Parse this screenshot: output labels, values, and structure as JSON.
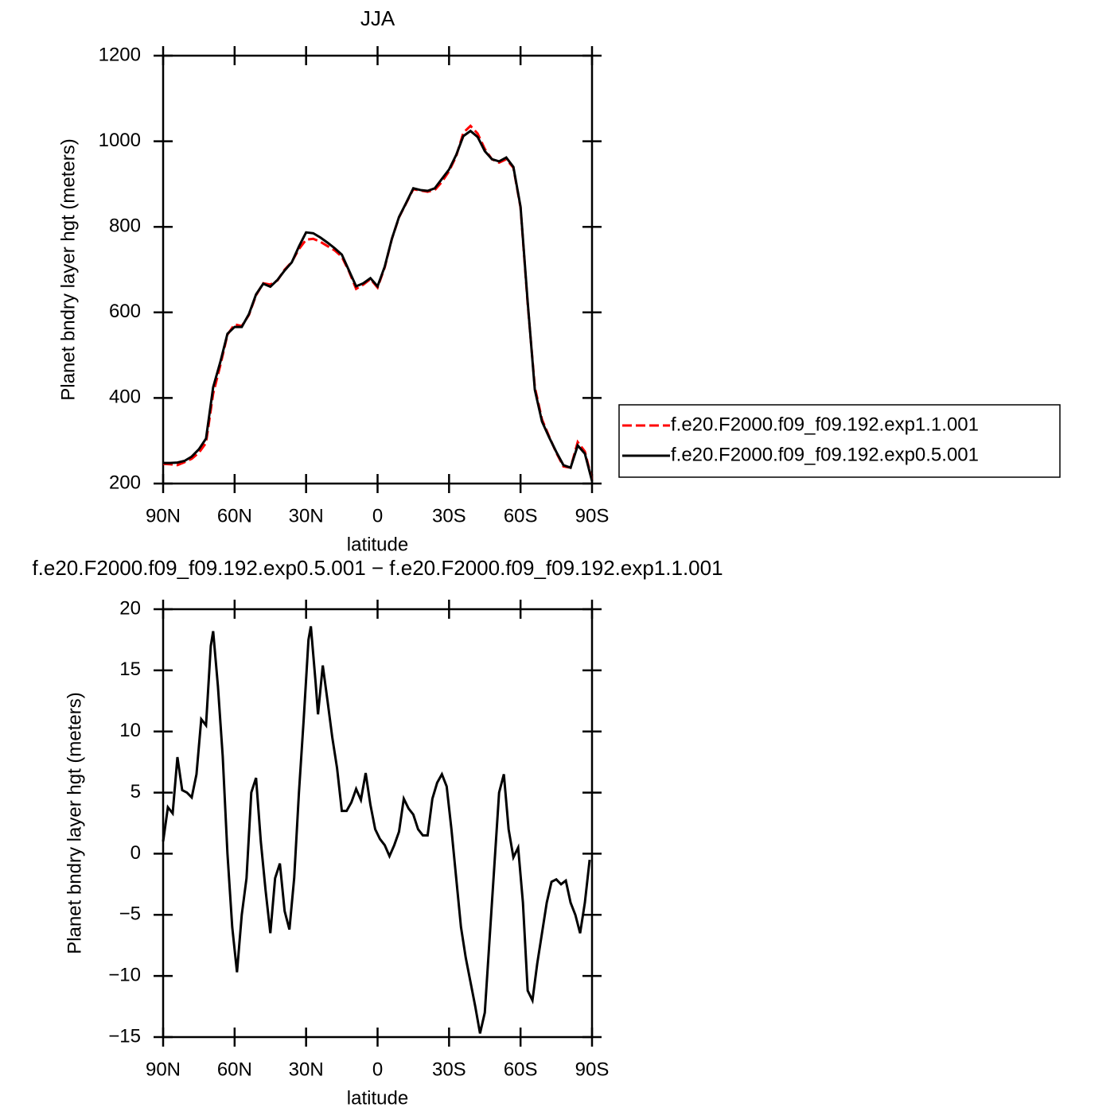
{
  "chart_data": [
    {
      "type": "line",
      "title": "JJA",
      "x_label": "latitude",
      "y_label": "Planet bndry layer hgt (meters)",
      "x": [
        90,
        87,
        84,
        81,
        78,
        75,
        72,
        69,
        66,
        63,
        60,
        57,
        54,
        51,
        48,
        45,
        42,
        39,
        36,
        33,
        30,
        27,
        24,
        21,
        18,
        15,
        12,
        9,
        6,
        3,
        0,
        -3,
        -6,
        -9,
        -12,
        -15,
        -18,
        -21,
        -24,
        -27,
        -30,
        -33,
        -36,
        -39,
        -42,
        -45,
        -48,
        -51,
        -54,
        -57,
        -60,
        -63,
        -66,
        -69,
        -72,
        -75,
        -78,
        -81,
        -84,
        -87,
        -90
      ],
      "series": [
        {
          "name": "f.e20.F2000.f09_f09.192.exp1.1.001",
          "color": "#ff0000",
          "dashed": true,
          "values": [
            246,
            245,
            243,
            250,
            258,
            272,
            295,
            410,
            476,
            548,
            572,
            568,
            594,
            640,
            668,
            665,
            675,
            700,
            718,
            748,
            770,
            772,
            765,
            755,
            745,
            730,
            696,
            655,
            665,
            678,
            658,
            705,
            772,
            822,
            855,
            888,
            885,
            882,
            886,
            905,
            930,
            965,
            1020,
            1036,
            1018,
            982,
            958,
            950,
            958,
            938,
            845,
            620,
            425,
            350,
            310,
            272,
            240,
            237,
            297,
            275,
            208
          ]
        },
        {
          "name": "f.e20.F2000.f09_f09.192.exp0.5.001",
          "color": "#000000",
          "dashed": false,
          "values": [
            248,
            248,
            249,
            253,
            263,
            280,
            305,
            425,
            484,
            550,
            566,
            566,
            596,
            642,
            667,
            660,
            676,
            698,
            717,
            754,
            787,
            785,
            775,
            763,
            750,
            735,
            698,
            661,
            668,
            680,
            661,
            707,
            772,
            823,
            856,
            890,
            886,
            884,
            890,
            912,
            934,
            968,
            1012,
            1024,
            1010,
            977,
            958,
            953,
            962,
            940,
            847,
            624,
            419,
            345,
            308,
            274,
            243,
            237,
            289,
            270,
            206
          ]
        }
      ],
      "xlim": [
        90,
        -90
      ],
      "xticks": [
        {
          "value": 90,
          "label": "90N"
        },
        {
          "value": 60,
          "label": "60N"
        },
        {
          "value": 30,
          "label": "30N"
        },
        0,
        {
          "value": -30,
          "label": "30S"
        },
        {
          "value": -60,
          "label": "60S"
        },
        {
          "value": -90,
          "label": "90S"
        }
      ],
      "ylim": [
        200,
        1200
      ],
      "yticks": [
        200,
        400,
        600,
        800,
        1000,
        1200
      ],
      "legend": "right"
    },
    {
      "type": "line",
      "title": "f.e20.F2000.f09_f09.192.exp0.5.001 − f.e20.F2000.f09_f09.192.exp1.1.001",
      "x_label": "latitude",
      "y_label": "Planet bndry layer hgt (meters)",
      "x": [
        90,
        88,
        86,
        84,
        82,
        80,
        78,
        76,
        74,
        72,
        70,
        69,
        67,
        65,
        63,
        61,
        59,
        57,
        55,
        53,
        51,
        49,
        47,
        45,
        43,
        41,
        39,
        37,
        35,
        33,
        31,
        29,
        28,
        26,
        25,
        23,
        21,
        19,
        17,
        15,
        13,
        11,
        9,
        7,
        5,
        3,
        1,
        -1,
        -3,
        -5,
        -7,
        -9,
        -11,
        -13,
        -15,
        -17,
        -19,
        -21,
        -23,
        -25,
        -27,
        -29,
        -31,
        -33,
        -35,
        -37,
        -39,
        -41,
        -43,
        -45,
        -47,
        -49,
        -51,
        -53,
        -55,
        -57,
        -59,
        -61,
        -63,
        -65,
        -67,
        -69,
        -71,
        -73,
        -75,
        -77,
        -79,
        -81,
        -83,
        -85,
        -87,
        -89
      ],
      "values": [
        1,
        3.8,
        3.3,
        7.9,
        5.2,
        5,
        4.6,
        6.5,
        11,
        10.5,
        17,
        18.2,
        13.7,
        8,
        0,
        -6,
        -9.7,
        -5,
        -2,
        5,
        6.2,
        1,
        -3,
        -6.5,
        -2,
        -0.8,
        -4.7,
        -6.2,
        -2,
        5,
        11,
        17.5,
        18.6,
        14,
        11.4,
        15.4,
        12.5,
        9.5,
        7,
        3.5,
        3.5,
        4.2,
        5.3,
        4.4,
        6.6,
        4,
        2,
        1.2,
        0.7,
        -0.2,
        0.7,
        1.8,
        4.5,
        3.7,
        3.2,
        2,
        1.5,
        1.5,
        4.5,
        5.8,
        6.5,
        5.5,
        2,
        -2,
        -6,
        -8.5,
        -10.5,
        -12.5,
        -14.7,
        -13,
        -7,
        -1,
        5,
        6.5,
        2,
        -0.3,
        0.5,
        -4,
        -11.2,
        -12,
        -9,
        -6.5,
        -4,
        -2.3,
        -2.1,
        -2.5,
        -2.2,
        -4,
        -5,
        -6.5,
        -4,
        -0.5
      ],
      "color": "#000000",
      "xlim": [
        90,
        -90
      ],
      "xticks": [
        {
          "value": 90,
          "label": "90N"
        },
        {
          "value": 60,
          "label": "60N"
        },
        {
          "value": 30,
          "label": "30N"
        },
        0,
        {
          "value": -30,
          "label": "30S"
        },
        {
          "value": -60,
          "label": "60S"
        },
        {
          "value": -90,
          "label": "90S"
        }
      ],
      "ylim": [
        -15,
        20
      ],
      "yticks": [
        {
          "value": -15,
          "label": "−15"
        },
        {
          "value": -10,
          "label": "−10"
        },
        {
          "value": -5,
          "label": "−5"
        },
        0,
        5,
        10,
        15,
        20
      ]
    }
  ]
}
